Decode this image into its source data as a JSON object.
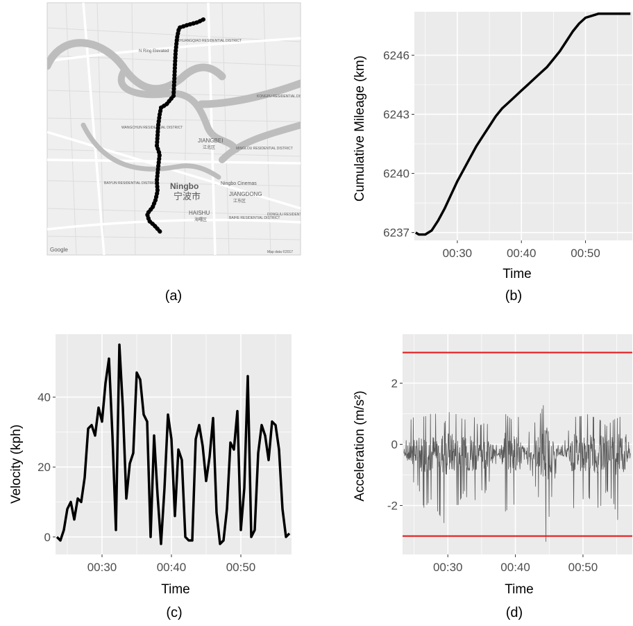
{
  "colors": {
    "panel": "#ebebeb",
    "grid": "#ffffff",
    "line": "#000000",
    "thresh": "#e41a1c",
    "noise": "#595959"
  },
  "map": {
    "caption": "(a)",
    "labels": {
      "ningbo": "Ningbo",
      "ningbo_cn": "宁波市",
      "jiangbei": "JIANGBEI",
      "jiangbei_cn": "江北区",
      "jiangdong": "JIANGDONG",
      "jiangdong_cn": "江东区",
      "haishu": "HAISHU",
      "haishu_cn": "海曙区",
      "cinemas": "Ningbo Cinemas",
      "zhuangqiao": "ZHUANGQIAO RESIDENTIAL DISTRICT",
      "wangchun": "WANGCHUN RESIDENTIAL DISTRICT",
      "baiyun": "BAIYUN RESIDENTIAL DISTRICT",
      "kongpu": "KONGPU RESIDENTIAL DISTRICT",
      "minglou": "MINGLOU RESIDENTIAL DISTRICT",
      "baihe": "BAIHE RESIDENTIAL DISTRICT",
      "dongliu": "DONGLIU RESIDENTIAL DISTRICT",
      "nring": "N Ring Elevated",
      "google": "Google",
      "mapdata": "Map data ©2017"
    }
  },
  "chart_data": [
    {
      "panel": "b",
      "type": "line",
      "caption": "(b)",
      "xlabel": "Time",
      "ylabel": "Cumulative Mileage (km)",
      "xticks": [
        "00:30",
        "00:40",
        "00:50"
      ],
      "xlim": [
        23.3,
        57.3
      ],
      "ylim": [
        6236.6,
        6248.2
      ],
      "yticks": [
        6237,
        6240,
        6243,
        6246
      ],
      "x": [
        23.5,
        24,
        25,
        26,
        27,
        28,
        29,
        30,
        31,
        32,
        33,
        34,
        35,
        36,
        37,
        38,
        39,
        40,
        41,
        42,
        43,
        44,
        45,
        46,
        47,
        48,
        49,
        50,
        51,
        52,
        53,
        54,
        55,
        56,
        57
      ],
      "y": [
        6237.0,
        6236.9,
        6236.9,
        6237.1,
        6237.6,
        6238.2,
        6238.9,
        6239.6,
        6240.2,
        6240.8,
        6241.4,
        6241.9,
        6242.4,
        6242.9,
        6243.3,
        6243.6,
        6243.9,
        6244.2,
        6244.5,
        6244.8,
        6245.1,
        6245.4,
        6245.8,
        6246.2,
        6246.7,
        6247.2,
        6247.6,
        6247.9,
        6248.0,
        6248.1,
        6248.1,
        6248.1,
        6248.1,
        6248.1,
        6248.1
      ]
    },
    {
      "panel": "c",
      "type": "line",
      "caption": "(c)",
      "xlabel": "Time",
      "ylabel": "Velocity (kph)",
      "xticks": [
        "00:30",
        "00:40",
        "00:50"
      ],
      "xlim": [
        23.3,
        57.3
      ],
      "ylim": [
        -5,
        58
      ],
      "yticks": [
        0,
        20,
        40
      ],
      "x": [
        23.5,
        24,
        24.5,
        25,
        25.5,
        26,
        26.5,
        27,
        27.5,
        28,
        28.5,
        29,
        29.5,
        30,
        30.5,
        31,
        31.5,
        32,
        32.5,
        33,
        33.5,
        34,
        34.5,
        35,
        35.5,
        36,
        36.5,
        37,
        37.5,
        38,
        38.5,
        39,
        39.5,
        40,
        40.5,
        41,
        41.5,
        42,
        42.5,
        43,
        43.5,
        44,
        44.5,
        45,
        45.5,
        46,
        46.5,
        47,
        47.5,
        48,
        48.5,
        49,
        49.5,
        50,
        50.5,
        51,
        51.5,
        52,
        52.5,
        53,
        53.5,
        54,
        54.5,
        55,
        55.5,
        56,
        56.5,
        57
      ],
      "y": [
        0,
        -1,
        2,
        8,
        10,
        5,
        11,
        10,
        17,
        31,
        32,
        29,
        37,
        33,
        44,
        51,
        29,
        2,
        55,
        37,
        11,
        21,
        24,
        47,
        45,
        35,
        33,
        0,
        29,
        12,
        -2,
        14,
        35,
        28,
        6,
        25,
        22,
        0,
        -1,
        -1,
        28,
        32,
        26,
        16,
        23,
        34,
        7,
        -2,
        -1,
        8,
        27,
        25,
        36,
        2,
        14,
        46,
        0,
        2,
        24,
        32,
        29,
        22,
        33,
        32,
        25,
        8,
        0,
        1
      ]
    },
    {
      "panel": "d",
      "type": "line",
      "caption": "(d)",
      "xlabel": "Time",
      "ylabel": "Acceleration (m/s²)",
      "xticks": [
        "00:30",
        "00:40",
        "00:50"
      ],
      "xlim": [
        23.3,
        57.3
      ],
      "ylim": [
        -3.6,
        3.6
      ],
      "yticks": [
        -2,
        0,
        2
      ],
      "thresholds": [
        3,
        -3
      ],
      "x": [
        23.5,
        24.5,
        25.5,
        26.5,
        27.5,
        28.5,
        29.5,
        30.5,
        31.5,
        32.5,
        33.5,
        34.5,
        35.5,
        36.5,
        37.5,
        38.5,
        39.5,
        40.5,
        41.5,
        42.5,
        43.5,
        44.5,
        45.5,
        46.5,
        47.5,
        48.5,
        49.5,
        50.5,
        51.5,
        52.5,
        53.5,
        54.5,
        55.5,
        56.5,
        57.0
      ],
      "y_max": [
        -0.2,
        0.8,
        1.0,
        0.9,
        1.0,
        1.0,
        0.7,
        1.2,
        0.9,
        0.8,
        1.1,
        0.6,
        0.7,
        0.6,
        -0.3,
        1.0,
        0.8,
        0.9,
        0.2,
        0.6,
        0.9,
        1.5,
        0.8,
        -0.2,
        0.2,
        0.9,
        0.9,
        1.0,
        0.9,
        0.8,
        0.6,
        0.8,
        0.9,
        0.9,
        0.2
      ],
      "y_min": [
        -0.4,
        -1.2,
        -1.3,
        -2.1,
        -1.8,
        -2.2,
        -2.6,
        -1.9,
        -2.0,
        -1.5,
        -2.3,
        -1.4,
        -1.6,
        -1.0,
        -0.4,
        -2.2,
        -2.0,
        -1.9,
        -0.5,
        -1.0,
        -1.8,
        -3.2,
        -1.5,
        -0.4,
        -0.4,
        -2.1,
        -2.0,
        -1.6,
        -2.0,
        -2.1,
        -1.5,
        -1.9,
        -2.8,
        -1.9,
        -0.5
      ]
    }
  ]
}
